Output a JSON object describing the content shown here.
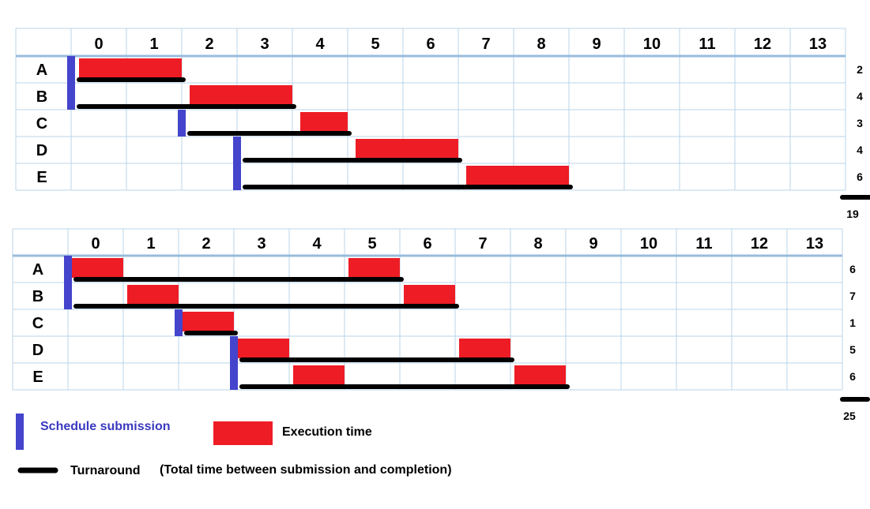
{
  "diagram_1": {
    "columns": [
      "0",
      "1",
      "2",
      "3",
      "4",
      "5",
      "6",
      "7",
      "8",
      "9",
      "10",
      "11",
      "12",
      "13"
    ],
    "rows": [
      {
        "label": "A",
        "turnaround": "2",
        "submit_time": 0,
        "finish_time": 2,
        "executions": [
          [
            0,
            2
          ]
        ]
      },
      {
        "label": "B",
        "turnaround": "4",
        "submit_time": 0,
        "finish_time": 4,
        "executions": [
          [
            2,
            4
          ]
        ]
      },
      {
        "label": "C",
        "turnaround": "3",
        "submit_time": 2,
        "finish_time": 5,
        "executions": [
          [
            4,
            5
          ]
        ]
      },
      {
        "label": "D",
        "turnaround": "4",
        "submit_time": 3,
        "finish_time": 7,
        "executions": [
          [
            5,
            7
          ]
        ]
      },
      {
        "label": "E",
        "turnaround": "6",
        "submit_time": 3,
        "finish_time": 9,
        "executions": [
          [
            7,
            9
          ]
        ]
      }
    ],
    "total": "19"
  },
  "diagram_2": {
    "columns": [
      "0",
      "1",
      "2",
      "3",
      "4",
      "5",
      "6",
      "7",
      "8",
      "9",
      "10",
      "11",
      "12",
      "13"
    ],
    "rows": [
      {
        "label": "A",
        "turnaround": "6",
        "submit_time": 0,
        "finish_time": 6,
        "executions": [
          [
            0,
            1
          ],
          [
            5,
            6
          ]
        ]
      },
      {
        "label": "B",
        "turnaround": "7",
        "submit_time": 0,
        "finish_time": 7,
        "executions": [
          [
            1,
            2
          ],
          [
            6,
            7
          ]
        ]
      },
      {
        "label": "C",
        "turnaround": "1",
        "submit_time": 2,
        "finish_time": 3,
        "executions": [
          [
            2,
            3
          ]
        ]
      },
      {
        "label": "D",
        "turnaround": "5",
        "submit_time": 3,
        "finish_time": 8,
        "executions": [
          [
            3,
            4
          ],
          [
            7,
            8
          ]
        ]
      },
      {
        "label": "E",
        "turnaround": "6",
        "submit_time": 3,
        "finish_time": 9,
        "executions": [
          [
            4,
            5
          ],
          [
            8,
            9
          ]
        ]
      }
    ],
    "total": "25"
  },
  "legend": {
    "submission_label": "Schedule submission",
    "execution_label": "Execution time",
    "turnaround_label": "Turnaround",
    "turnaround_note": "(Total time between submission and completion)"
  },
  "colors": {
    "submission": "#4444cc",
    "execution": "#ee1c25",
    "turnaround": "#000000",
    "grid": "#b8d4ea",
    "header_rule": "#99bbdd",
    "text": "#000000",
    "submission_text": "#3a3ac0"
  }
}
